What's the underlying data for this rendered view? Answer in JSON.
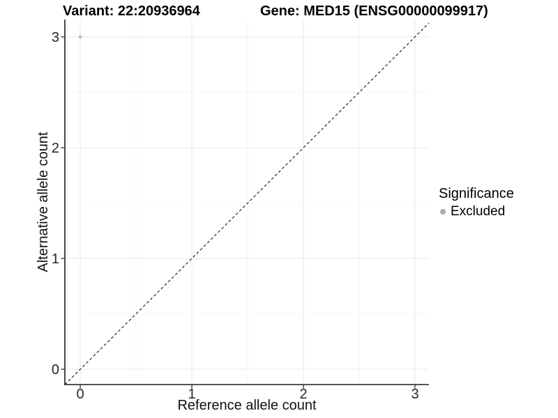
{
  "titles": {
    "variant": "Variant: 22:20936964",
    "gene": "Gene: MED15 (ENSG00000099917)"
  },
  "legend": {
    "title": "Significance",
    "position": "right",
    "items": [
      {
        "label": "Excluded",
        "color": "#ababab"
      }
    ]
  },
  "chart_data": {
    "type": "scatter",
    "title_left": "Variant: 22:20936964",
    "title_right": "Gene: MED15 (ENSG00000099917)",
    "xlabel": "Reference allele count",
    "ylabel": "Alternative allele count",
    "xlim": [
      -0.138,
      3.125
    ],
    "ylim": [
      -0.138,
      3.157
    ],
    "x_ticks": [
      0,
      1,
      2,
      3
    ],
    "y_ticks": [
      0,
      1,
      2,
      3
    ],
    "x_minor_ticks": [
      0.5,
      1.5,
      2.5
    ],
    "y_minor_ticks": [
      0.5,
      1.5,
      2.5
    ],
    "grid": true,
    "legend_position": "right",
    "identity_line": {
      "type": "abline",
      "slope": 1,
      "intercept": 0,
      "style": "dashed",
      "color": "#111111"
    },
    "series": [
      {
        "name": "Excluded",
        "color": "#bdbdbd",
        "point_radius": 2.4,
        "points": [
          {
            "x": 0,
            "y": 3
          }
        ]
      }
    ],
    "colors": {
      "grid_major": "#e9e9e9",
      "grid_minor": "#f4f4f4",
      "axis_line": "#1c1c1c",
      "axis_text": "#262626"
    }
  }
}
